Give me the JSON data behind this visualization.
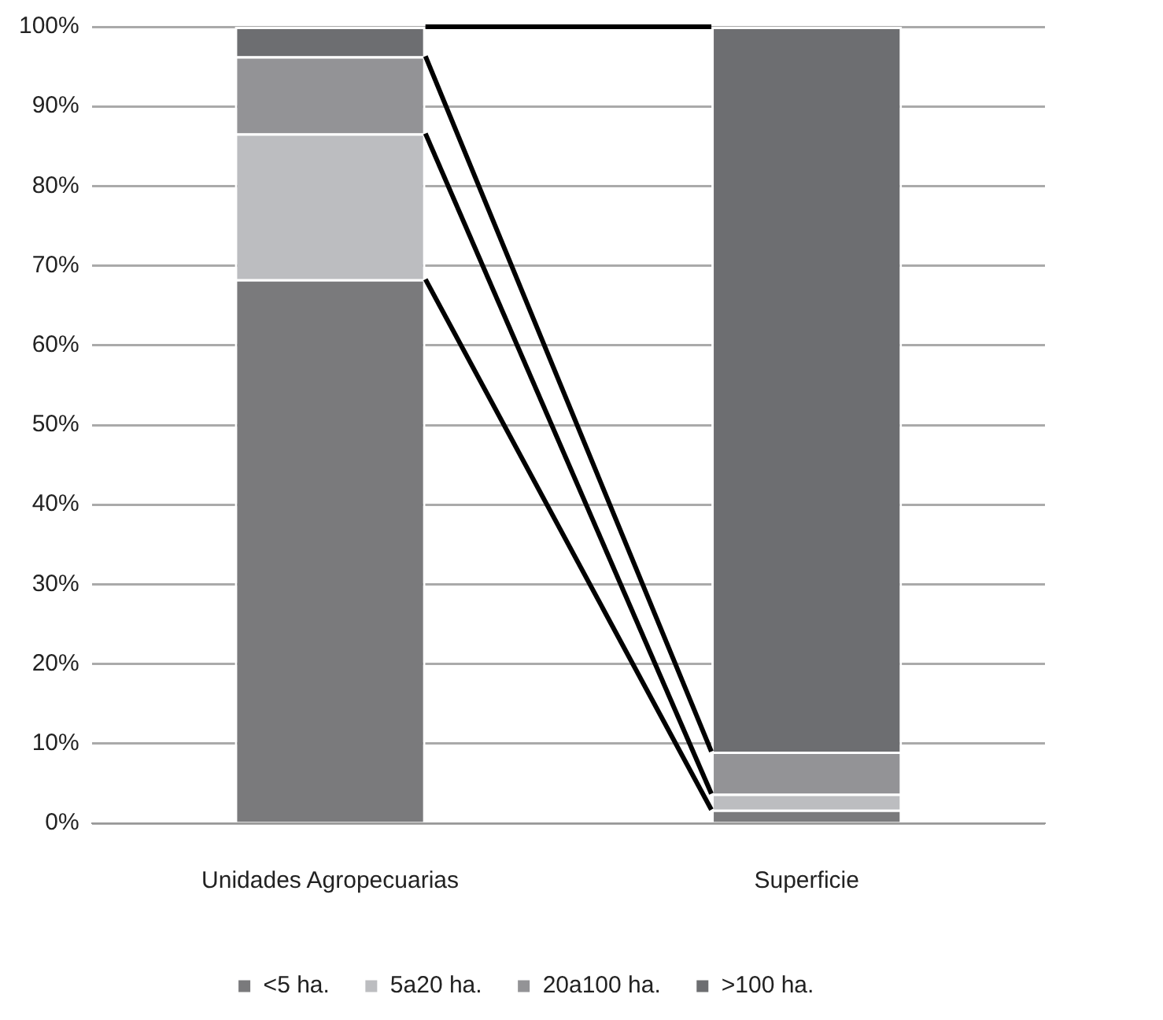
{
  "chart_data": {
    "type": "bar",
    "stacked": true,
    "categories": [
      "Unidades Agropecuarias",
      "Superficie"
    ],
    "series": [
      {
        "name": "<5 ha.",
        "color": "#7a7a7c",
        "values": [
          68.3,
          1.7
        ]
      },
      {
        "name": "5a20 ha.",
        "color": "#bcbdc0",
        "values": [
          18.3,
          2.0
        ]
      },
      {
        "name": "20a100 ha.",
        "color": "#939396",
        "values": [
          9.7,
          5.3
        ]
      },
      {
        "name": ">100 ha.",
        "color": "#6d6e71",
        "values": [
          3.7,
          91.0
        ]
      }
    ],
    "ylim": [
      0,
      100
    ],
    "yticks": [
      {
        "value": 0,
        "label": "0%"
      },
      {
        "value": 10,
        "label": "10%"
      },
      {
        "value": 20,
        "label": "20%"
      },
      {
        "value": 30,
        "label": "30%"
      },
      {
        "value": 40,
        "label": "40%"
      },
      {
        "value": 50,
        "label": "50%"
      },
      {
        "value": 60,
        "label": "60%"
      },
      {
        "value": 70,
        "label": "70%"
      },
      {
        "value": 80,
        "label": "80%"
      },
      {
        "value": 90,
        "label": "90%"
      },
      {
        "value": 100,
        "label": "100%"
      }
    ],
    "grid": "y",
    "legend": "bottom"
  }
}
